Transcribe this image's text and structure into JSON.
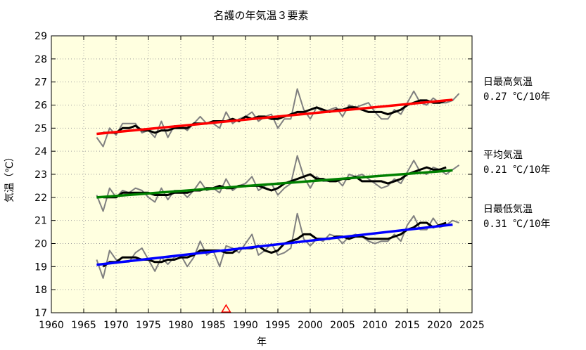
{
  "chart_data": {
    "type": "line",
    "title": "名護の年気温３要素",
    "xlabel": "年",
    "ylabel": "気温（℃）",
    "xlim": [
      1960,
      2025
    ],
    "ylim": [
      17,
      29
    ],
    "x_ticks": [
      1960,
      1965,
      1970,
      1975,
      1980,
      1985,
      1990,
      1995,
      2000,
      2005,
      2010,
      2015,
      2020,
      2025
    ],
    "y_ticks": [
      17,
      18,
      19,
      20,
      21,
      22,
      23,
      24,
      25,
      26,
      27,
      28,
      29
    ],
    "grid": true,
    "background": "#ffffe0",
    "colors": {
      "annual": "#808080",
      "moving_avg": "#000000",
      "trend_max": "#ff0000",
      "trend_mean": "#008000",
      "trend_min": "#0000ff",
      "marker": "#ff0000"
    },
    "marker": {
      "year": 1987,
      "shape": "triangle"
    },
    "series": [
      {
        "name": "日最高気温",
        "rate": "0.27 ℃/10年",
        "years": [
          1967,
          1968,
          1969,
          1970,
          1971,
          1972,
          1973,
          1974,
          1975,
          1976,
          1977,
          1978,
          1979,
          1980,
          1981,
          1982,
          1983,
          1984,
          1985,
          1986,
          1987,
          1988,
          1989,
          1990,
          1991,
          1992,
          1993,
          1994,
          1995,
          1996,
          1997,
          1998,
          1999,
          2000,
          2001,
          2002,
          2003,
          2004,
          2005,
          2006,
          2007,
          2008,
          2009,
          2010,
          2011,
          2012,
          2013,
          2014,
          2015,
          2016,
          2017,
          2018,
          2019,
          2020,
          2021,
          2022,
          2023
        ],
        "annual": [
          24.6,
          24.2,
          25.0,
          24.7,
          25.2,
          25.2,
          25.2,
          24.8,
          24.9,
          24.6,
          25.3,
          24.6,
          25.1,
          25.1,
          24.9,
          25.2,
          25.5,
          25.2,
          25.2,
          25.0,
          25.7,
          25.2,
          25.4,
          25.5,
          25.7,
          25.3,
          25.5,
          25.6,
          25.0,
          25.4,
          25.4,
          26.7,
          25.8,
          25.4,
          25.9,
          25.7,
          25.8,
          25.9,
          25.5,
          26.0,
          25.9,
          26.0,
          26.1,
          25.7,
          25.4,
          25.4,
          25.8,
          25.6,
          26.1,
          26.6,
          26.1,
          26.0,
          26.3,
          26.1,
          26.1,
          26.2,
          26.5
        ],
        "moving_avg_years": [
          1968,
          1969,
          1970,
          1971,
          1972,
          1973,
          1974,
          1975,
          1976,
          1977,
          1978,
          1979,
          1980,
          1981,
          1982,
          1983,
          1984,
          1985,
          1986,
          1987,
          1988,
          1989,
          1990,
          1991,
          1992,
          1993,
          1994,
          1995,
          1996,
          1997,
          1998,
          1999,
          2000,
          2001,
          2002,
          2003,
          2004,
          2005,
          2006,
          2007,
          2008,
          2009,
          2010,
          2011,
          2012,
          2013,
          2014,
          2015,
          2016,
          2017,
          2018,
          2019,
          2020,
          2021
        ],
        "moving_avg": [
          24.8,
          24.8,
          24.8,
          25.0,
          25.0,
          25.1,
          24.9,
          24.9,
          24.8,
          24.9,
          24.9,
          25.0,
          25.0,
          25.0,
          25.2,
          25.2,
          25.2,
          25.3,
          25.3,
          25.3,
          25.4,
          25.3,
          25.5,
          25.4,
          25.5,
          25.5,
          25.4,
          25.4,
          25.5,
          25.6,
          25.7,
          25.7,
          25.8,
          25.9,
          25.8,
          25.7,
          25.8,
          25.8,
          25.9,
          25.9,
          25.8,
          25.7,
          25.7,
          25.7,
          25.6,
          25.7,
          25.8,
          26.0,
          26.1,
          26.2,
          26.2,
          26.1,
          26.1,
          26.2
        ],
        "trend": {
          "x": [
            1967,
            2022
          ],
          "y": [
            24.75,
            26.23
          ]
        }
      },
      {
        "name": "平均気温",
        "rate": "0.21 ℃/10年",
        "years": [
          1967,
          1968,
          1969,
          1970,
          1971,
          1972,
          1973,
          1974,
          1975,
          1976,
          1977,
          1978,
          1979,
          1980,
          1981,
          1982,
          1983,
          1984,
          1985,
          1986,
          1987,
          1988,
          1989,
          1990,
          1991,
          1992,
          1993,
          1994,
          1995,
          1996,
          1997,
          1998,
          1999,
          2000,
          2001,
          2002,
          2003,
          2004,
          2005,
          2006,
          2007,
          2008,
          2009,
          2010,
          2011,
          2012,
          2013,
          2014,
          2015,
          2016,
          2017,
          2018,
          2019,
          2020,
          2021,
          2022,
          2023
        ],
        "annual": [
          22.1,
          21.4,
          22.4,
          22.0,
          22.3,
          22.2,
          22.4,
          22.3,
          22.0,
          21.8,
          22.4,
          21.9,
          22.3,
          22.3,
          22.0,
          22.3,
          22.7,
          22.3,
          22.4,
          22.2,
          22.8,
          22.3,
          22.5,
          22.6,
          22.9,
          22.3,
          22.5,
          22.6,
          22.1,
          22.4,
          22.6,
          23.8,
          22.9,
          22.4,
          22.9,
          22.7,
          22.7,
          22.8,
          22.5,
          23.0,
          22.9,
          23.0,
          22.8,
          22.6,
          22.4,
          22.5,
          22.8,
          22.6,
          23.1,
          23.6,
          23.1,
          23.0,
          23.3,
          23.2,
          23.0,
          23.2,
          23.4
        ],
        "moving_avg_years": [
          1968,
          1969,
          1970,
          1971,
          1972,
          1973,
          1974,
          1975,
          1976,
          1977,
          1978,
          1979,
          1980,
          1981,
          1982,
          1983,
          1984,
          1985,
          1986,
          1987,
          1988,
          1989,
          1990,
          1991,
          1992,
          1993,
          1994,
          1995,
          1996,
          1997,
          1998,
          1999,
          2000,
          2001,
          2002,
          2003,
          2004,
          2005,
          2006,
          2007,
          2008,
          2009,
          2010,
          2011,
          2012,
          2013,
          2014,
          2015,
          2016,
          2017,
          2018,
          2019,
          2020,
          2021
        ],
        "moving_avg": [
          22.0,
          22.0,
          22.0,
          22.2,
          22.2,
          22.2,
          22.2,
          22.2,
          22.1,
          22.1,
          22.1,
          22.2,
          22.2,
          22.2,
          22.3,
          22.3,
          22.4,
          22.4,
          22.5,
          22.4,
          22.4,
          22.5,
          22.5,
          22.5,
          22.5,
          22.4,
          22.3,
          22.4,
          22.6,
          22.7,
          22.8,
          22.9,
          23.0,
          22.8,
          22.8,
          22.7,
          22.7,
          22.8,
          22.8,
          22.9,
          22.7,
          22.7,
          22.7,
          22.7,
          22.6,
          22.7,
          22.8,
          23.0,
          23.1,
          23.2,
          23.3,
          23.2,
          23.2,
          23.3
        ],
        "trend": {
          "x": [
            1967,
            2022
          ],
          "y": [
            22.0,
            23.17
          ]
        }
      },
      {
        "name": "日最低気温",
        "rate": "0.31 ℃/10年",
        "years": [
          1967,
          1968,
          1969,
          1970,
          1971,
          1972,
          1973,
          1974,
          1975,
          1976,
          1977,
          1978,
          1979,
          1980,
          1981,
          1982,
          1983,
          1984,
          1985,
          1986,
          1987,
          1988,
          1989,
          1990,
          1991,
          1992,
          1993,
          1994,
          1995,
          1996,
          1997,
          1998,
          1999,
          2000,
          2001,
          2002,
          2003,
          2004,
          2005,
          2006,
          2007,
          2008,
          2009,
          2010,
          2011,
          2012,
          2013,
          2014,
          2015,
          2016,
          2017,
          2018,
          2019,
          2020,
          2021,
          2022,
          2023
        ],
        "annual": [
          19.3,
          18.5,
          19.7,
          19.3,
          19.2,
          19.2,
          19.6,
          19.8,
          19.3,
          18.8,
          19.4,
          19.1,
          19.4,
          19.5,
          19.0,
          19.4,
          20.1,
          19.5,
          19.7,
          19.0,
          19.9,
          19.8,
          19.6,
          20.0,
          20.4,
          19.5,
          19.7,
          20.0,
          19.5,
          19.6,
          19.8,
          21.3,
          20.2,
          19.9,
          20.2,
          20.1,
          20.4,
          20.3,
          20.0,
          20.3,
          20.4,
          20.3,
          20.1,
          20.0,
          20.1,
          20.1,
          20.4,
          20.1,
          20.8,
          21.2,
          20.6,
          20.6,
          21.1,
          20.7,
          20.8,
          21.0,
          20.9
        ],
        "moving_avg_years": [
          1968,
          1969,
          1970,
          1971,
          1972,
          1973,
          1974,
          1975,
          1976,
          1977,
          1978,
          1979,
          1980,
          1981,
          1982,
          1983,
          1984,
          1985,
          1986,
          1987,
          1988,
          1989,
          1990,
          1991,
          1992,
          1993,
          1994,
          1995,
          1996,
          1997,
          1998,
          1999,
          2000,
          2001,
          2002,
          2003,
          2004,
          2005,
          2006,
          2007,
          2008,
          2009,
          2010,
          2011,
          2012,
          2013,
          2014,
          2015,
          2016,
          2017,
          2018,
          2019,
          2020,
          2021
        ],
        "moving_avg": [
          19.0,
          19.2,
          19.2,
          19.4,
          19.4,
          19.4,
          19.3,
          19.3,
          19.2,
          19.2,
          19.3,
          19.3,
          19.4,
          19.4,
          19.5,
          19.7,
          19.7,
          19.7,
          19.7,
          19.6,
          19.6,
          19.8,
          19.8,
          19.8,
          19.9,
          19.7,
          19.6,
          19.7,
          20.0,
          20.1,
          20.2,
          20.4,
          20.4,
          20.2,
          20.2,
          20.2,
          20.3,
          20.3,
          20.2,
          20.3,
          20.3,
          20.2,
          20.2,
          20.2,
          20.2,
          20.3,
          20.4,
          20.6,
          20.7,
          20.9,
          20.9,
          20.7,
          20.8,
          20.9
        ],
        "trend": {
          "x": [
            1967,
            2022
          ],
          "y": [
            19.08,
            20.82
          ]
        }
      }
    ]
  }
}
